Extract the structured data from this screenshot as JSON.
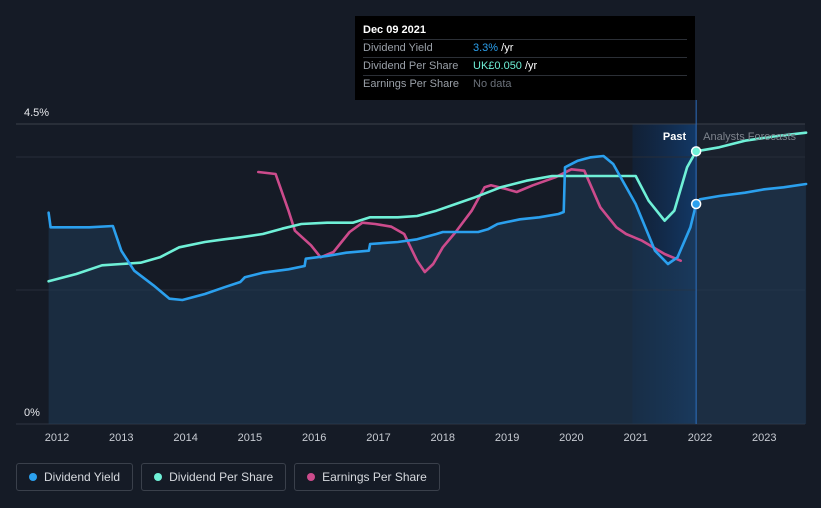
{
  "chart_data": {
    "type": "line",
    "x_ticks": [
      "2012",
      "2013",
      "2014",
      "2015",
      "2016",
      "2017",
      "2018",
      "2019",
      "2020",
      "2021",
      "2022",
      "2023"
    ],
    "y_ticks": [
      "4.5%",
      "0%"
    ],
    "x_range": [
      2011.8,
      2023.65
    ],
    "y_range_percent": [
      0,
      4.5
    ],
    "past_label": "Past",
    "forecast_label": "Analysts Forecasts",
    "series": [
      {
        "name": "Dividend Yield",
        "unit": "%",
        "color": "#2ba0ee",
        "points": [
          [
            2011.87,
            3.17
          ],
          [
            2011.9,
            2.95
          ],
          [
            2012.5,
            2.95
          ],
          [
            2012.87,
            2.97
          ],
          [
            2013.0,
            2.6
          ],
          [
            2013.2,
            2.3
          ],
          [
            2013.5,
            2.08
          ],
          [
            2013.75,
            1.88
          ],
          [
            2013.95,
            1.86
          ],
          [
            2014.3,
            1.95
          ],
          [
            2014.6,
            2.05
          ],
          [
            2014.85,
            2.13
          ],
          [
            2014.92,
            2.2
          ],
          [
            2015.2,
            2.27
          ],
          [
            2015.6,
            2.32
          ],
          [
            2015.85,
            2.37
          ],
          [
            2015.87,
            2.48
          ],
          [
            2016.2,
            2.52
          ],
          [
            2016.5,
            2.57
          ],
          [
            2016.85,
            2.6
          ],
          [
            2016.87,
            2.7
          ],
          [
            2017.3,
            2.73
          ],
          [
            2017.6,
            2.77
          ],
          [
            2017.9,
            2.85
          ],
          [
            2018.0,
            2.88
          ],
          [
            2018.3,
            2.88
          ],
          [
            2018.55,
            2.88
          ],
          [
            2018.7,
            2.92
          ],
          [
            2018.85,
            3.0
          ],
          [
            2019.2,
            3.07
          ],
          [
            2019.5,
            3.1
          ],
          [
            2019.8,
            3.15
          ],
          [
            2019.88,
            3.18
          ],
          [
            2019.9,
            3.85
          ],
          [
            2020.1,
            3.95
          ],
          [
            2020.3,
            4.0
          ],
          [
            2020.5,
            4.02
          ],
          [
            2020.65,
            3.9
          ],
          [
            2021.0,
            3.3
          ],
          [
            2021.3,
            2.6
          ],
          [
            2021.5,
            2.4
          ],
          [
            2021.65,
            2.5
          ],
          [
            2021.85,
            2.95
          ],
          [
            2021.94,
            3.3
          ],
          [
            2022.0,
            3.37
          ],
          [
            2022.3,
            3.42
          ],
          [
            2022.7,
            3.47
          ],
          [
            2023.0,
            3.52
          ],
          [
            2023.3,
            3.55
          ],
          [
            2023.65,
            3.6
          ]
        ]
      },
      {
        "name": "Dividend Per Share",
        "unit": "UK£",
        "color": "#6ff0d7",
        "points": [
          [
            2011.87,
            2.14
          ],
          [
            2012.3,
            2.25
          ],
          [
            2012.7,
            2.38
          ],
          [
            2013.0,
            2.4
          ],
          [
            2013.3,
            2.42
          ],
          [
            2013.6,
            2.5
          ],
          [
            2013.9,
            2.65
          ],
          [
            2014.3,
            2.73
          ],
          [
            2014.6,
            2.77
          ],
          [
            2014.85,
            2.8
          ],
          [
            2015.2,
            2.85
          ],
          [
            2015.5,
            2.93
          ],
          [
            2015.8,
            3.0
          ],
          [
            2016.2,
            3.02
          ],
          [
            2016.6,
            3.02
          ],
          [
            2016.87,
            3.1
          ],
          [
            2017.3,
            3.1
          ],
          [
            2017.6,
            3.12
          ],
          [
            2017.9,
            3.2
          ],
          [
            2018.2,
            3.3
          ],
          [
            2018.5,
            3.4
          ],
          [
            2018.9,
            3.55
          ],
          [
            2019.3,
            3.65
          ],
          [
            2019.7,
            3.72
          ],
          [
            2020.0,
            3.72
          ],
          [
            2020.5,
            3.72
          ],
          [
            2021.0,
            3.72
          ],
          [
            2021.2,
            3.35
          ],
          [
            2021.45,
            3.05
          ],
          [
            2021.6,
            3.2
          ],
          [
            2021.8,
            3.85
          ],
          [
            2021.94,
            4.09
          ],
          [
            2022.3,
            4.15
          ],
          [
            2022.7,
            4.25
          ],
          [
            2023.2,
            4.32
          ],
          [
            2023.65,
            4.37
          ]
        ]
      },
      {
        "name": "Earnings Per Share",
        "unit": "UK£",
        "color": "#cc4b8c",
        "points": [
          [
            2015.13,
            3.78
          ],
          [
            2015.4,
            3.75
          ],
          [
            2015.6,
            3.2
          ],
          [
            2015.7,
            2.9
          ],
          [
            2015.95,
            2.68
          ],
          [
            2016.1,
            2.5
          ],
          [
            2016.3,
            2.58
          ],
          [
            2016.55,
            2.88
          ],
          [
            2016.75,
            3.02
          ],
          [
            2016.95,
            3.0
          ],
          [
            2017.2,
            2.96
          ],
          [
            2017.4,
            2.85
          ],
          [
            2017.6,
            2.45
          ],
          [
            2017.72,
            2.28
          ],
          [
            2017.85,
            2.4
          ],
          [
            2018.0,
            2.65
          ],
          [
            2018.2,
            2.88
          ],
          [
            2018.45,
            3.2
          ],
          [
            2018.65,
            3.55
          ],
          [
            2018.75,
            3.58
          ],
          [
            2019.0,
            3.52
          ],
          [
            2019.15,
            3.48
          ],
          [
            2019.4,
            3.58
          ],
          [
            2019.75,
            3.7
          ],
          [
            2020.0,
            3.82
          ],
          [
            2020.2,
            3.8
          ],
          [
            2020.45,
            3.25
          ],
          [
            2020.7,
            2.95
          ],
          [
            2020.85,
            2.85
          ],
          [
            2021.1,
            2.75
          ],
          [
            2021.45,
            2.55
          ],
          [
            2021.7,
            2.45
          ]
        ]
      }
    ],
    "highlight_x": 2021.94,
    "forecast_start_x": 2021.94,
    "past_band_start_x": 2020.95
  },
  "tooltip": {
    "date": "Dec 09 2021",
    "rows": [
      {
        "label": "Dividend Yield",
        "value": "3.3%",
        "suffix": " /yr"
      },
      {
        "label": "Dividend Per Share",
        "value": "UK£0.050",
        "suffix": " /yr"
      },
      {
        "label": "Earnings Per Share",
        "value": "No data",
        "suffix": ""
      }
    ]
  },
  "legend": [
    {
      "label": "Dividend Yield",
      "color": "#2ba0ee"
    },
    {
      "label": "Dividend Per Share",
      "color": "#6ff0d7"
    },
    {
      "label": "Earnings Per Share",
      "color": "#cc4b8c"
    }
  ]
}
